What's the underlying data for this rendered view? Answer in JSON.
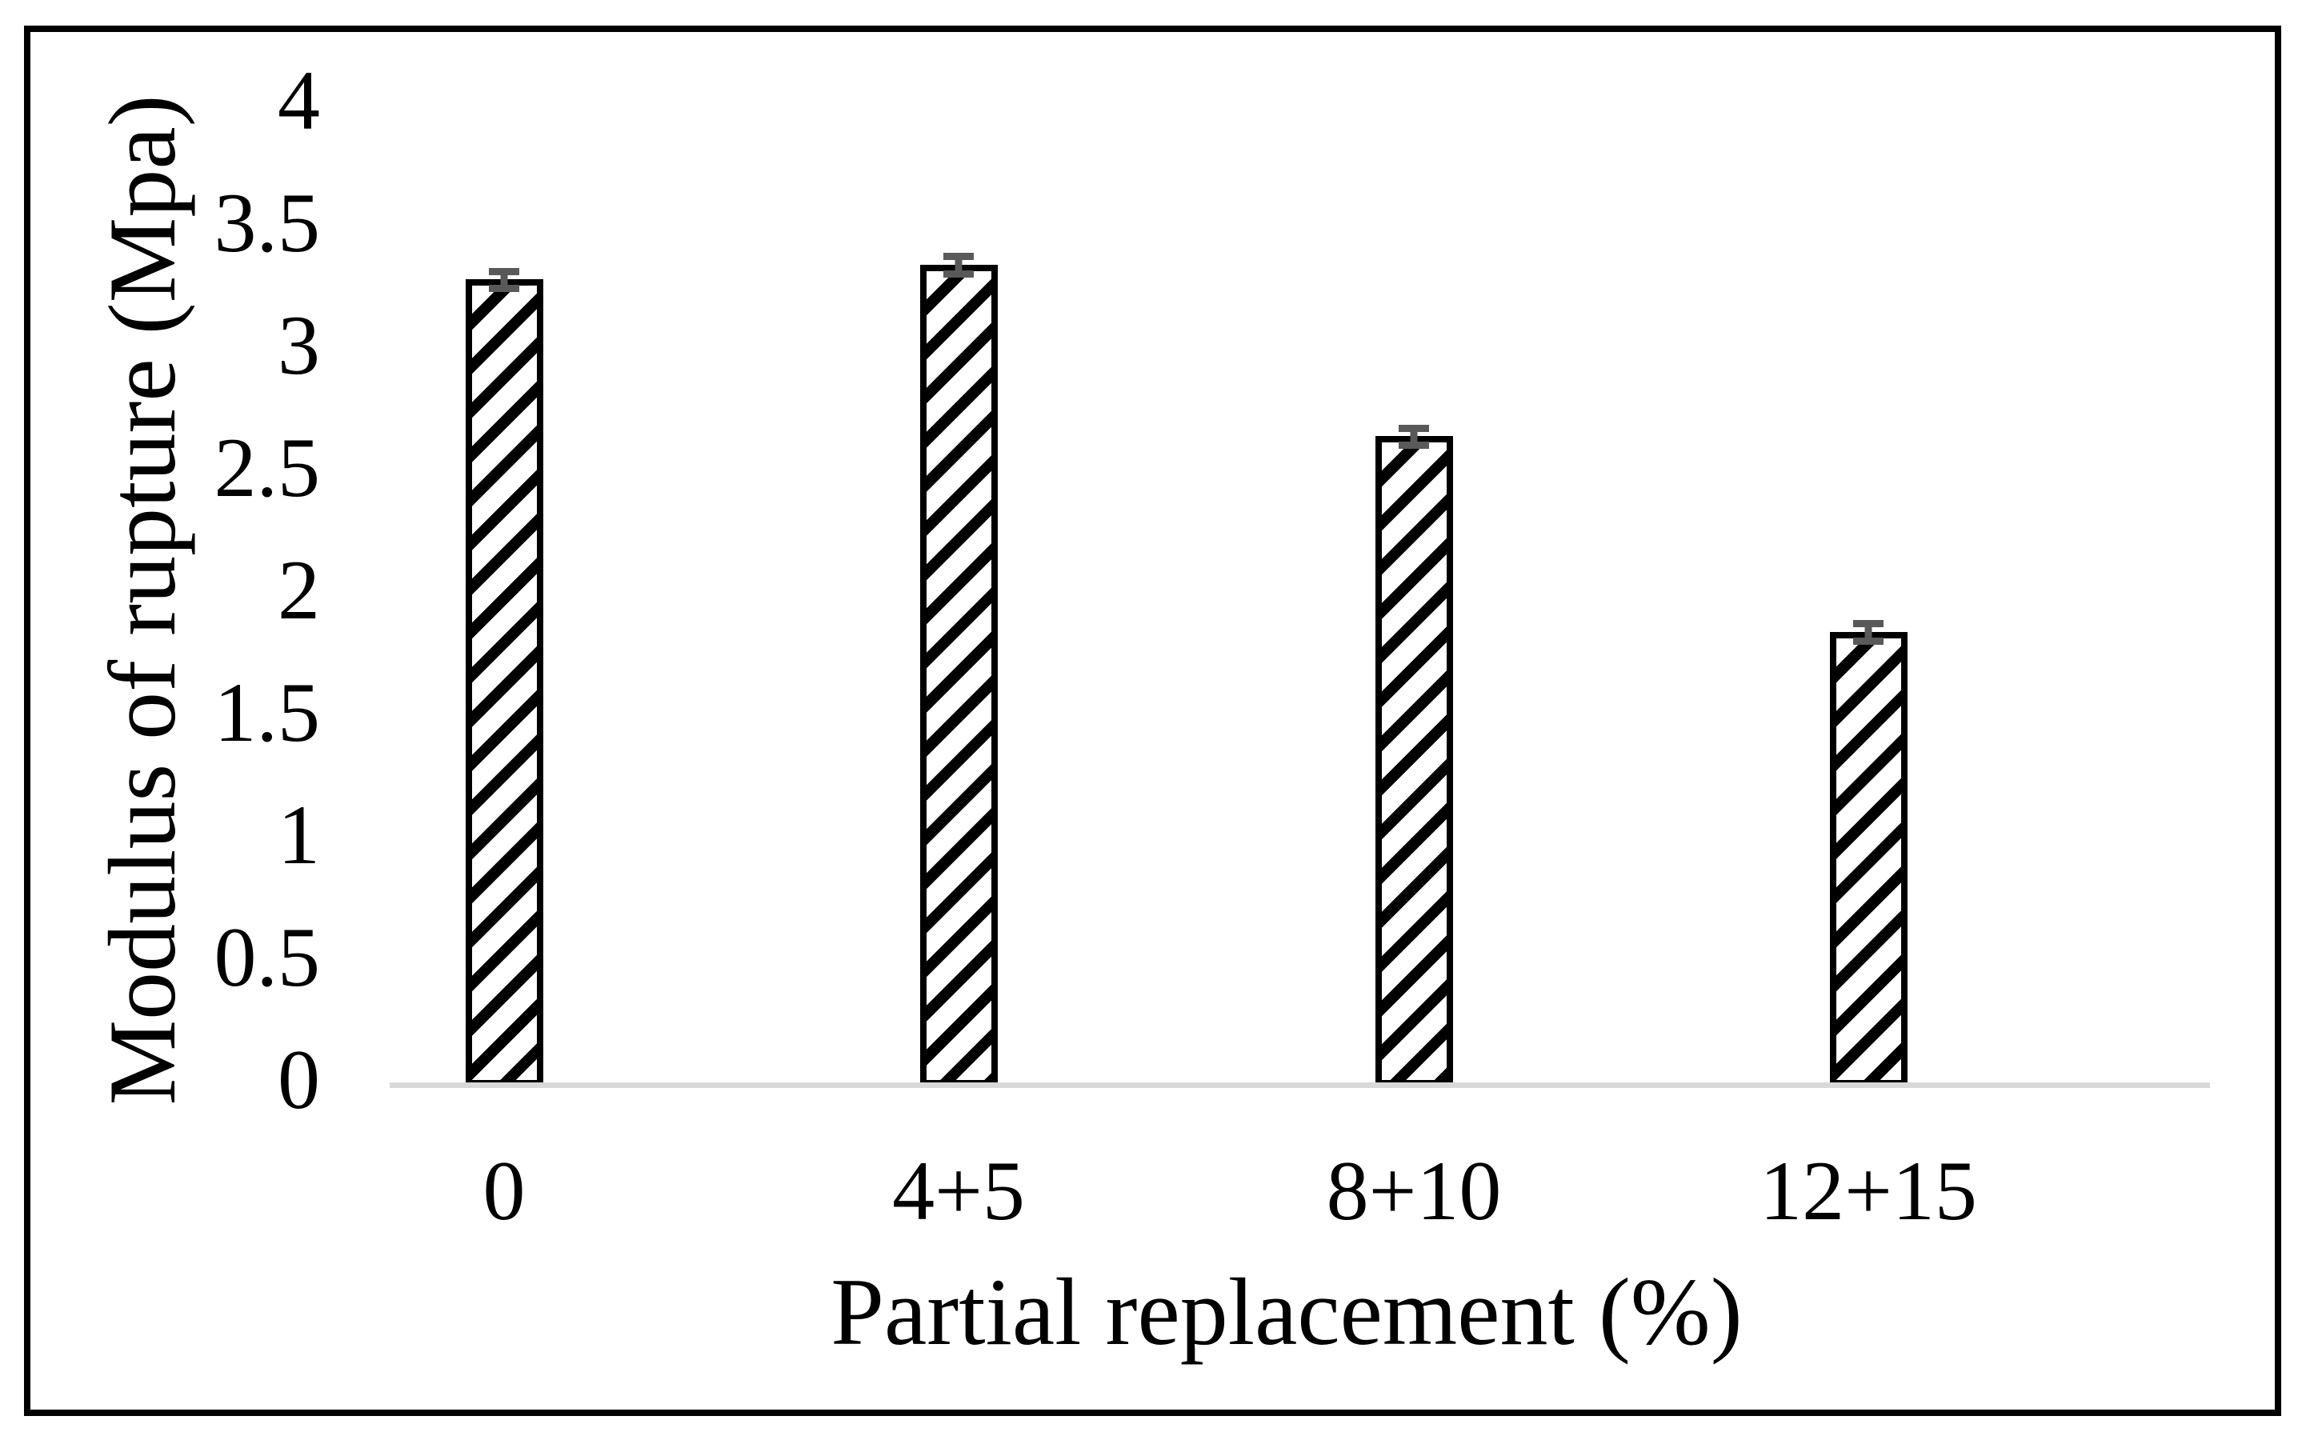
{
  "chart_data": {
    "type": "bar",
    "categories": [
      "0",
      "4+5",
      "8+10",
      "12+15"
    ],
    "values": [
      3.27,
      3.33,
      2.63,
      1.83
    ],
    "error_bars": [
      0.035,
      0.035,
      0.035,
      0.035
    ],
    "xlabel": "Partial replacement (%)",
    "ylabel": "Modulus of rupture (Mpa)",
    "ylim": [
      0,
      4
    ],
    "y_tick_step": 0.5,
    "y_ticks": [
      "0",
      "0.5",
      "1",
      "1.5",
      "2",
      "2.5",
      "3",
      "3.5",
      "4"
    ],
    "grid": false,
    "legend": false,
    "bar_hatch": "forward-diagonal-stripes",
    "colors": {
      "bar_fill": "#ffffff",
      "bar_hatch": "#000000",
      "bar_outline": "#000000",
      "error_bar": "#595959",
      "axis_line": "#d9d9d9",
      "frame_border": "#000000",
      "background": "#ffffff",
      "text": "#000000"
    }
  }
}
